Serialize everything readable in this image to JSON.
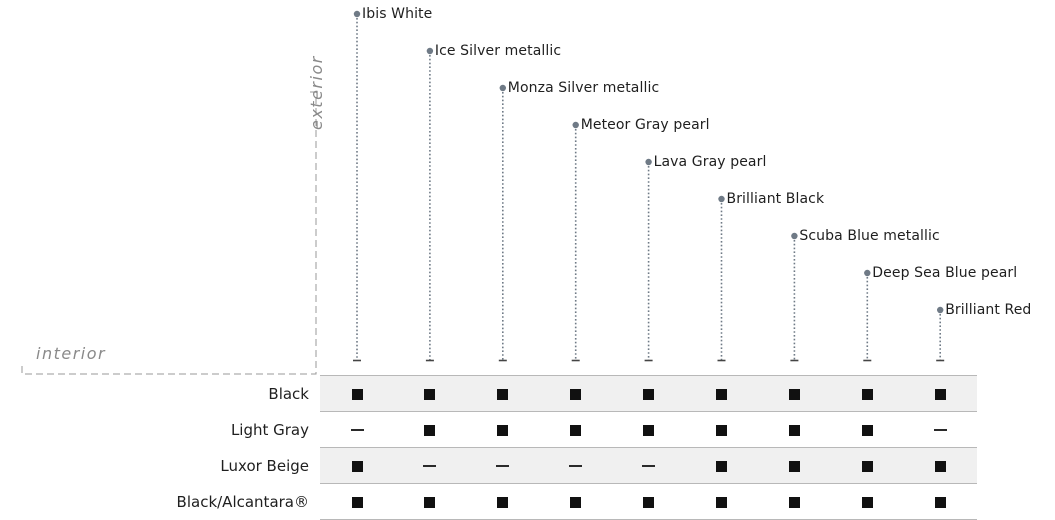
{
  "axes": {
    "exterior_label": "exterior",
    "interior_label": "interior"
  },
  "colors": {
    "stem": "#6f7a86",
    "dot": "#6f7a86",
    "shaded_row": "#f0f0f0",
    "rule": "#b8b8b8",
    "axis_dashes": "#9a9a9a",
    "available": "#111111",
    "unavailable": "#2a2a2a"
  },
  "legend_marks": {
    "available": "■",
    "unavailable": "—"
  },
  "exterior_colors": [
    "Ibis White",
    "Ice Silver metallic",
    "Monza Silver metallic",
    "Meteor Gray pearl",
    "Lava Gray pearl",
    "Brilliant Black",
    "Scuba Blue metallic",
    "Deep Sea Blue pearl",
    "Brilliant Red"
  ],
  "interior_rows": [
    {
      "name": "Black",
      "shaded": true,
      "availability": [
        true,
        true,
        true,
        true,
        true,
        true,
        true,
        true,
        true
      ]
    },
    {
      "name": "Light Gray",
      "shaded": false,
      "availability": [
        false,
        true,
        true,
        true,
        true,
        true,
        true,
        true,
        false
      ]
    },
    {
      "name": "Luxor Beige",
      "shaded": true,
      "availability": [
        true,
        false,
        false,
        false,
        false,
        true,
        true,
        true,
        true
      ]
    },
    {
      "name": "Black/Alcantara®",
      "shaded": false,
      "availability": [
        true,
        true,
        true,
        true,
        true,
        true,
        true,
        true,
        true
      ]
    }
  ]
}
